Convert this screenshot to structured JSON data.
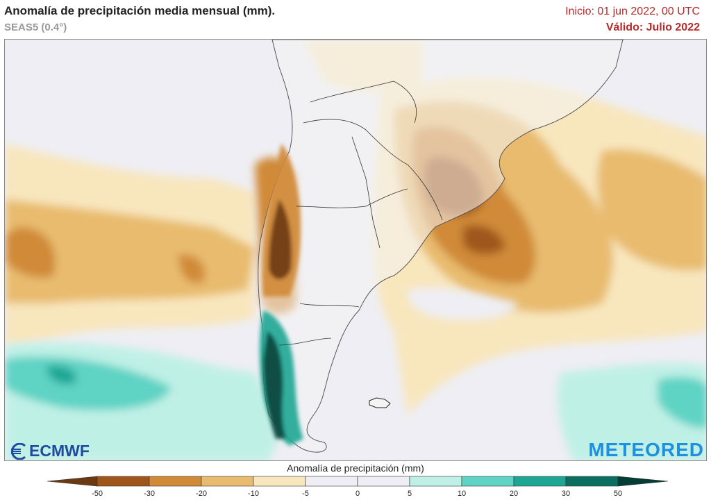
{
  "header": {
    "title": "Anomalía de precipitación media mensual (mm).",
    "subtitle": "SEAS5 (0.4°)",
    "init": "Inicio: 01 jun 2022, 00 UTC",
    "valid": "Válido: Julio 2022"
  },
  "logos": {
    "ecmwf": "ECMWF",
    "meteored": "METEORED"
  },
  "legend": {
    "title": "Anomalía de precipitación (mm)",
    "ticks": [
      "-50",
      "-30",
      "-20",
      "-10",
      "-5",
      "0",
      "5",
      "10",
      "20",
      "30",
      "50"
    ],
    "colors": [
      "#6b3a10",
      "#a0561a",
      "#d08a38",
      "#e8bb6e",
      "#f8e6bd",
      "#eeeef4",
      "#eeeef4",
      "#bff0e6",
      "#5fd3c4",
      "#1ea694",
      "#0a6e60",
      "#043d35"
    ]
  }
}
